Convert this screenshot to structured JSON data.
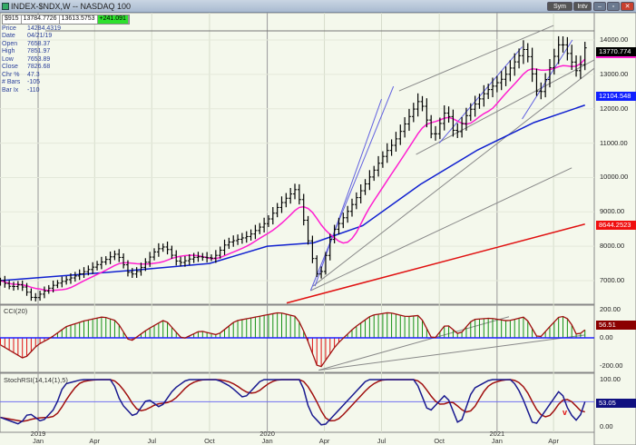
{
  "window": {
    "title": "INDEX-$NDX,W -- NASDAQ 100",
    "buttons": [
      "Sym",
      "Intv"
    ]
  },
  "info": {
    "row": [
      "$915",
      "13784.7726",
      "13613.5753",
      "+241.091"
    ],
    "lines": [
      [
        "Price",
        "14284.4319"
      ],
      [
        "Date",
        "04/21/19"
      ],
      [
        "Open",
        "7658.37"
      ],
      [
        "High",
        "7851.97"
      ],
      [
        "Low",
        "7653.89"
      ],
      [
        "Close",
        "7826.68"
      ],
      [
        "Chr %",
        "47.3"
      ],
      [
        "# Bars",
        "-105"
      ],
      [
        "Bar Ix",
        "-110"
      ]
    ]
  },
  "colors": {
    "background": "#f4f8ec",
    "price_bars": "#000000",
    "ma_short": "#ff1fd0",
    "ma_mid": "#1020d0",
    "ma_long": "#e01010",
    "cci_pos": "#149014",
    "cci_neg": "#e01010",
    "stoch_k": "#1a1a90",
    "stoch_d": "#a01010",
    "zero_line": "#2020ff"
  },
  "chart_data": [
    {
      "type": "bar",
      "title": "INDEX-$NDX,W -- NASDAQ 100",
      "ylim": [
        6300,
        14600
      ],
      "y_ticks": [
        "14000.00",
        "13000.00",
        "12000.00",
        "11000.00",
        "10000.00",
        "9000.00",
        "8000.00",
        "7000.00"
      ],
      "x_ticks": [
        [
          "2019",
          "Jan"
        ],
        [
          "",
          "Apr"
        ],
        [
          "",
          "Jul"
        ],
        [
          "",
          "Oct"
        ],
        [
          "2020",
          "Jan"
        ],
        [
          "",
          "Apr"
        ],
        [
          "",
          "Jul"
        ],
        [
          "",
          "Oct"
        ],
        [
          "2021",
          "Jan"
        ],
        [
          "",
          "Apr"
        ]
      ],
      "x_tick_dates": [
        "2019-01-01",
        "2019-04-01",
        "2019-07-01",
        "2019-10-01",
        "2020-01-01",
        "2020-04-01",
        "2020-07-01",
        "2020-10-01",
        "2021-01-01",
        "2021-04-01"
      ],
      "close": [
        [
          "2018-11-02",
          7000
        ],
        [
          "2018-11-19",
          6800
        ],
        [
          "2018-12-03",
          6900
        ],
        [
          "2018-12-24",
          6450
        ],
        [
          "2019-01-07",
          6650
        ],
        [
          "2019-01-28",
          6900
        ],
        [
          "2019-02-25",
          7100
        ],
        [
          "2019-03-25",
          7350
        ],
        [
          "2019-04-22",
          7650
        ],
        [
          "2019-05-06",
          7800
        ],
        [
          "2019-05-27",
          7150
        ],
        [
          "2019-06-10",
          7300
        ],
        [
          "2019-07-08",
          7900
        ],
        [
          "2019-07-22",
          8000
        ],
        [
          "2019-08-12",
          7500
        ],
        [
          "2019-09-09",
          7700
        ],
        [
          "2019-10-07",
          7650
        ],
        [
          "2019-10-28",
          8100
        ],
        [
          "2019-12-02",
          8300
        ],
        [
          "2019-12-30",
          8700
        ],
        [
          "2020-01-20",
          9200
        ],
        [
          "2020-02-17",
          9700
        ],
        [
          "2020-03-09",
          7900
        ],
        [
          "2020-03-23",
          7000
        ],
        [
          "2020-04-13",
          8400
        ],
        [
          "2020-05-04",
          8900
        ],
        [
          "2020-06-01",
          9700
        ],
        [
          "2020-07-06",
          10700
        ],
        [
          "2020-07-20",
          11000
        ],
        [
          "2020-08-31",
          12300
        ],
        [
          "2020-09-21",
          11100
        ],
        [
          "2020-10-12",
          12000
        ],
        [
          "2020-10-26",
          11200
        ],
        [
          "2020-11-16",
          11900
        ],
        [
          "2020-12-14",
          12500
        ],
        [
          "2021-01-11",
          12900
        ],
        [
          "2021-02-15",
          13800
        ],
        [
          "2021-03-08",
          12300
        ],
        [
          "2021-03-22",
          13000
        ],
        [
          "2021-04-12",
          14000
        ],
        [
          "2021-05-10",
          13000
        ],
        [
          "2021-05-21",
          13770.774
        ]
      ],
      "ma_mid": [
        [
          "2018-11-02",
          7000
        ],
        [
          "2019-06-01",
          7300
        ],
        [
          "2019-10-01",
          7500
        ],
        [
          "2020-01-01",
          8000
        ],
        [
          "2020-03-15",
          8100
        ],
        [
          "2020-06-01",
          8600
        ],
        [
          "2020-09-01",
          9800
        ],
        [
          "2020-12-01",
          10800
        ],
        [
          "2021-03-01",
          11600
        ],
        [
          "2021-05-21",
          12104.548
        ]
      ],
      "ma_long": [
        [
          "2020-02-01",
          6350
        ],
        [
          "2021-05-21",
          8644.2523
        ]
      ],
      "last_labels": {
        "price": "13770.774",
        "ma_mid": "12104.548",
        "ma_long": "8644.2523"
      },
      "trendlines": [
        {
          "color": "#888888",
          "from": [
            "2020-07-29",
            12520
          ],
          "to": [
            "2021-04-01",
            14420
          ]
        },
        {
          "color": "#888888",
          "from": [
            "2020-03-14",
            6840
          ],
          "to": [
            "2021-06-05",
            13180
          ]
        },
        {
          "color": "#888888",
          "from": [
            "2020-08-25",
            10670
          ],
          "to": [
            "2021-06-05",
            13420
          ]
        },
        {
          "color": "#888888",
          "from": [
            "2020-03-10",
            6710
          ],
          "to": [
            "2021-04-30",
            10280
          ]
        },
        {
          "color": "#6060e0",
          "from": [
            "2020-03-10",
            6710
          ],
          "to": [
            "2020-07-20",
            12650
          ]
        },
        {
          "color": "#6060e0",
          "from": [
            "2020-03-17",
            6840
          ],
          "to": [
            "2020-07-01",
            12280
          ]
        },
        {
          "color": "#6060e0",
          "from": [
            "2020-10-01",
            11000
          ],
          "to": [
            "2021-02-10",
            13800
          ]
        },
        {
          "color": "#6060e0",
          "from": [
            "2021-02-10",
            11700
          ],
          "to": [
            "2021-05-01",
            14000
          ]
        }
      ]
    },
    {
      "type": "bar",
      "title": "CCI(20)",
      "ylim": [
        -230,
        230
      ],
      "y_ticks": [
        "200.00",
        "0.00",
        "-200.00"
      ],
      "last_label": "56.51",
      "values": [
        [
          "2018-11-02",
          -50
        ],
        [
          "2018-12-10",
          -150
        ],
        [
          "2018-12-31",
          -50
        ],
        [
          "2019-01-21",
          0
        ],
        [
          "2019-02-15",
          80
        ],
        [
          "2019-03-15",
          120
        ],
        [
          "2019-04-15",
          150
        ],
        [
          "2019-05-06",
          120
        ],
        [
          "2019-05-27",
          -30
        ],
        [
          "2019-06-24",
          60
        ],
        [
          "2019-07-22",
          130
        ],
        [
          "2019-08-19",
          -10
        ],
        [
          "2019-09-16",
          50
        ],
        [
          "2019-10-14",
          20
        ],
        [
          "2019-11-11",
          120
        ],
        [
          "2019-12-16",
          150
        ],
        [
          "2020-01-20",
          180
        ],
        [
          "2020-02-17",
          150
        ],
        [
          "2020-03-02",
          20
        ],
        [
          "2020-03-23",
          -230
        ],
        [
          "2020-04-20",
          -50
        ],
        [
          "2020-05-18",
          70
        ],
        [
          "2020-06-15",
          160
        ],
        [
          "2020-07-13",
          180
        ],
        [
          "2020-08-10",
          150
        ],
        [
          "2020-08-31",
          160
        ],
        [
          "2020-09-21",
          -20
        ],
        [
          "2020-10-12",
          100
        ],
        [
          "2020-11-02",
          20
        ],
        [
          "2020-11-23",
          130
        ],
        [
          "2020-12-21",
          140
        ],
        [
          "2021-01-18",
          120
        ],
        [
          "2021-02-15",
          150
        ],
        [
          "2021-03-08",
          -10
        ],
        [
          "2021-03-22",
          60
        ],
        [
          "2021-04-12",
          160
        ],
        [
          "2021-04-26",
          130
        ],
        [
          "2021-05-10",
          0
        ],
        [
          "2021-05-17",
          56.51
        ],
        [
          "2021-05-21",
          56.51
        ]
      ],
      "trendlines": [
        {
          "color": "#888888",
          "from": [
            "2020-03-23",
            -230
          ],
          "to": [
            "2021-01-20",
            150
          ]
        },
        {
          "color": "#888888",
          "from": [
            "2020-03-23",
            -230
          ],
          "to": [
            "2021-05-21",
            20
          ]
        }
      ]
    },
    {
      "type": "line",
      "title": "StochRSI(14,14(1),5)",
      "ylim": [
        0,
        100
      ],
      "y_ticks": [
        "100.00",
        "0.00"
      ],
      "last_label": "53.05",
      "annotation": "v",
      "k": [
        [
          "2018-11-02",
          20
        ],
        [
          "2018-12-03",
          5
        ],
        [
          "2018-12-17",
          30
        ],
        [
          "2019-01-07",
          10
        ],
        [
          "2019-01-28",
          40
        ],
        [
          "2019-02-11",
          90
        ],
        [
          "2019-03-11",
          100
        ],
        [
          "2019-04-29",
          100
        ],
        [
          "2019-05-13",
          50
        ],
        [
          "2019-06-03",
          20
        ],
        [
          "2019-06-24",
          60
        ],
        [
          "2019-07-15",
          40
        ],
        [
          "2019-08-05",
          80
        ],
        [
          "2019-08-26",
          100
        ],
        [
          "2019-10-14",
          100
        ],
        [
          "2019-11-04",
          85
        ],
        [
          "2019-11-25",
          60
        ],
        [
          "2019-12-23",
          100
        ],
        [
          "2020-02-24",
          100
        ],
        [
          "2020-03-09",
          30
        ],
        [
          "2020-03-30",
          0
        ],
        [
          "2020-04-20",
          30
        ],
        [
          "2020-05-11",
          60
        ],
        [
          "2020-06-08",
          100
        ],
        [
          "2020-08-24",
          100
        ],
        [
          "2020-09-14",
          30
        ],
        [
          "2020-10-12",
          70
        ],
        [
          "2020-11-02",
          0
        ],
        [
          "2020-11-23",
          80
        ],
        [
          "2020-12-21",
          100
        ],
        [
          "2021-01-25",
          100
        ],
        [
          "2021-02-08",
          70
        ],
        [
          "2021-03-01",
          0
        ],
        [
          "2021-03-22",
          40
        ],
        [
          "2021-04-12",
          80
        ],
        [
          "2021-04-26",
          30
        ],
        [
          "2021-05-10",
          10
        ],
        [
          "2021-05-21",
          53.05
        ]
      ]
    }
  ]
}
